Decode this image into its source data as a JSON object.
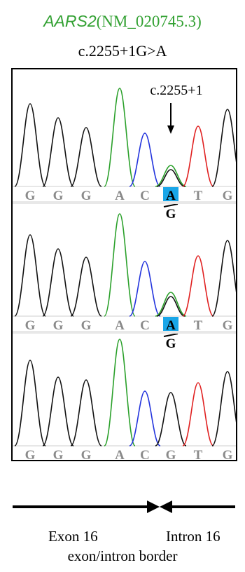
{
  "title": {
    "gene": "AARS2",
    "accession": "(NM_020745.3)"
  },
  "variant": "c.2255+1G>A",
  "site_label": "c.2255+1",
  "colors": {
    "title_green": "#33a133",
    "trace_black": "#111111",
    "trace_green": "#2aa02a",
    "trace_blue": "#2233dd",
    "trace_red": "#e02020",
    "highlight": "#19a6e8",
    "base_grey": "#8a8a8a"
  },
  "panels": [
    {
      "bases": [
        "G",
        "G",
        "G",
        "A",
        "C",
        "A",
        "T",
        "G"
      ],
      "alt_base": "G",
      "highlight_index": 5,
      "heterozygous": true
    },
    {
      "bases": [
        "G",
        "G",
        "G",
        "A",
        "C",
        "A",
        "T",
        "G"
      ],
      "alt_base": "G",
      "highlight_index": 5,
      "heterozygous": true
    },
    {
      "bases": [
        "G",
        "G",
        "G",
        "A",
        "C",
        "G",
        "T",
        "G"
      ],
      "alt_base": "",
      "highlight_index": -1,
      "heterozygous": false
    }
  ],
  "region": {
    "exon_label": "Exon 16",
    "intron_label": "Intron 16",
    "border_label": "exon/intron border"
  },
  "icons": {
    "site_arrow": "down-arrow-icon",
    "exon_arrow": "right-arrow-icon",
    "intron_arrow": "left-arrow-icon"
  }
}
